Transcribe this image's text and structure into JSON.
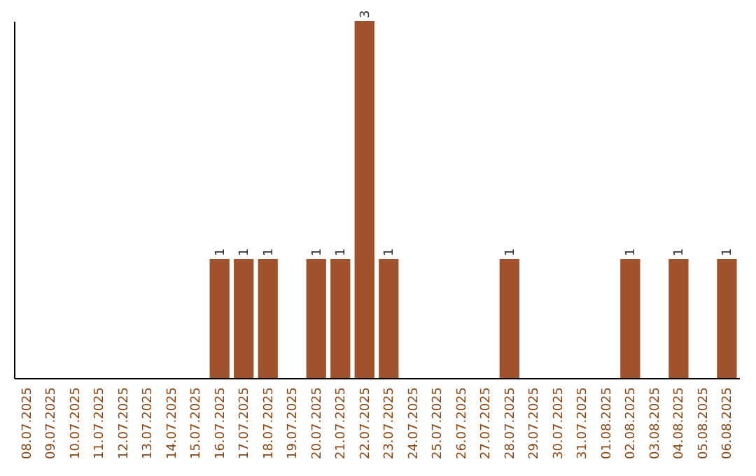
{
  "chart_data": {
    "type": "bar",
    "categories": [
      "08.07.2025",
      "09.07.2025",
      "10.07.2025",
      "11.07.2025",
      "12.07.2025",
      "13.07.2025",
      "14.07.2025",
      "15.07.2025",
      "16.07.2025",
      "17.07.2025",
      "18.07.2025",
      "19.07.2025",
      "20.07.2025",
      "21.07.2025",
      "22.07.2025",
      "23.07.2025",
      "24.07.2025",
      "25.07.2025",
      "26.07.2025",
      "27.07.2025",
      "28.07.2025",
      "29.07.2025",
      "30.07.2025",
      "31.07.2025",
      "01.08.2025",
      "02.08.2025",
      "03.08.2025",
      "04.08.2025",
      "05.08.2025",
      "06.08.2025"
    ],
    "values": [
      0,
      0,
      0,
      0,
      0,
      0,
      0,
      0,
      1,
      1,
      1,
      0,
      1,
      1,
      3,
      1,
      0,
      0,
      0,
      0,
      1,
      0,
      0,
      0,
      0,
      1,
      0,
      1,
      0,
      1
    ],
    "value_labels": [
      null,
      null,
      null,
      null,
      null,
      null,
      null,
      null,
      "1",
      "1",
      "1",
      null,
      "1",
      "1",
      "3",
      "1",
      null,
      null,
      null,
      null,
      "1",
      null,
      null,
      null,
      null,
      "1",
      null,
      "1",
      null,
      "1"
    ],
    "color": "#a0522d",
    "tick_labels": "x"
  }
}
